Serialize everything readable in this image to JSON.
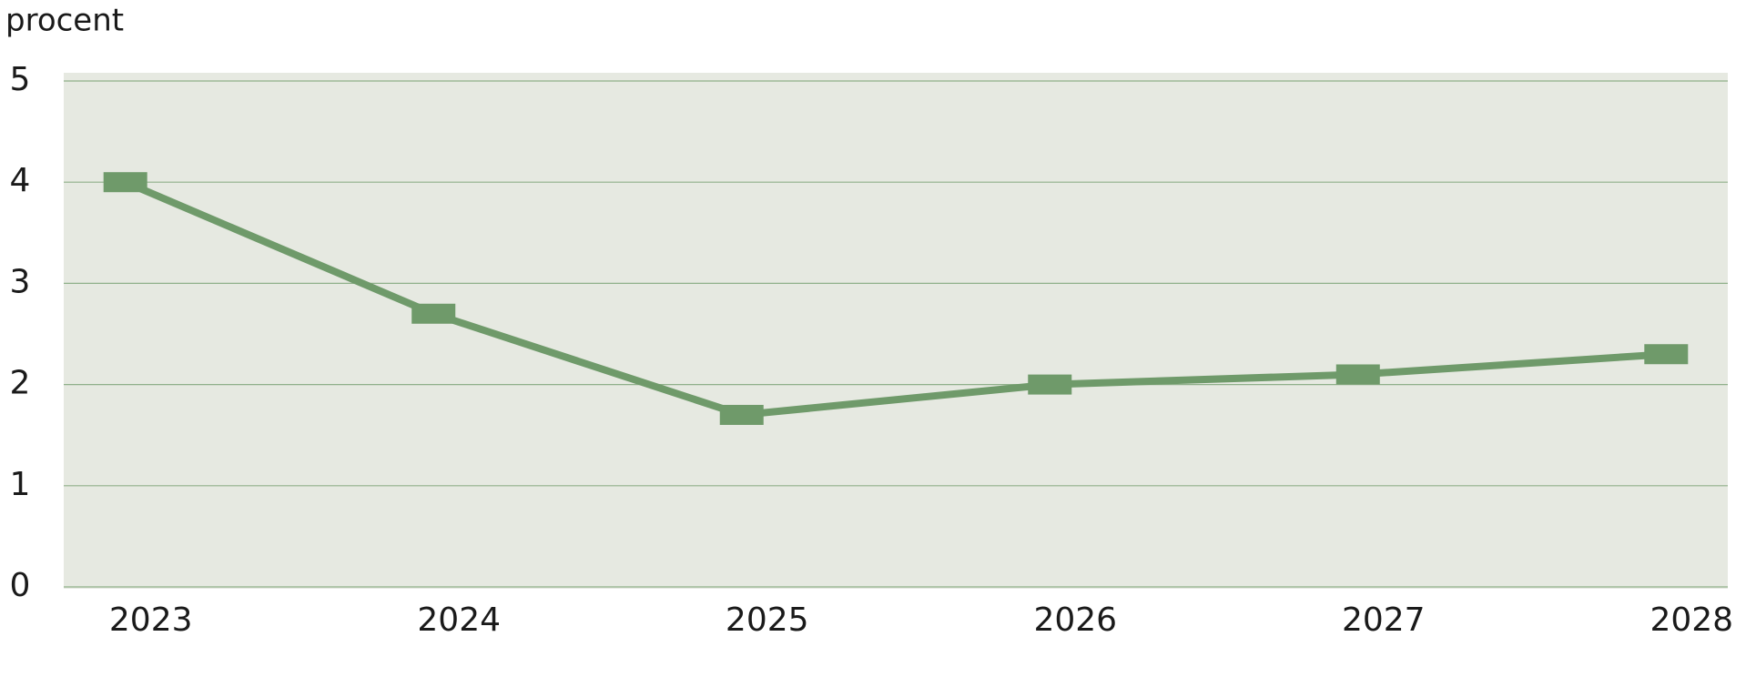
{
  "chart_data": {
    "type": "line",
    "y_label": "procent",
    "x": [
      2023,
      2024,
      2025,
      2026,
      2027,
      2028
    ],
    "series": [
      {
        "color": "#6f9a6a",
        "values": [
          4.0,
          2.7,
          1.7,
          2.0,
          2.1,
          2.3
        ]
      }
    ],
    "xlim": [
      2022.8,
      2028.2
    ],
    "xticks": [
      2023,
      2024,
      2025,
      2026,
      2027,
      2028
    ],
    "ylim": [
      0,
      5
    ],
    "yticks": [
      0,
      1,
      2,
      3,
      4,
      5
    ],
    "grid": true,
    "background": "#e6e9e1"
  }
}
